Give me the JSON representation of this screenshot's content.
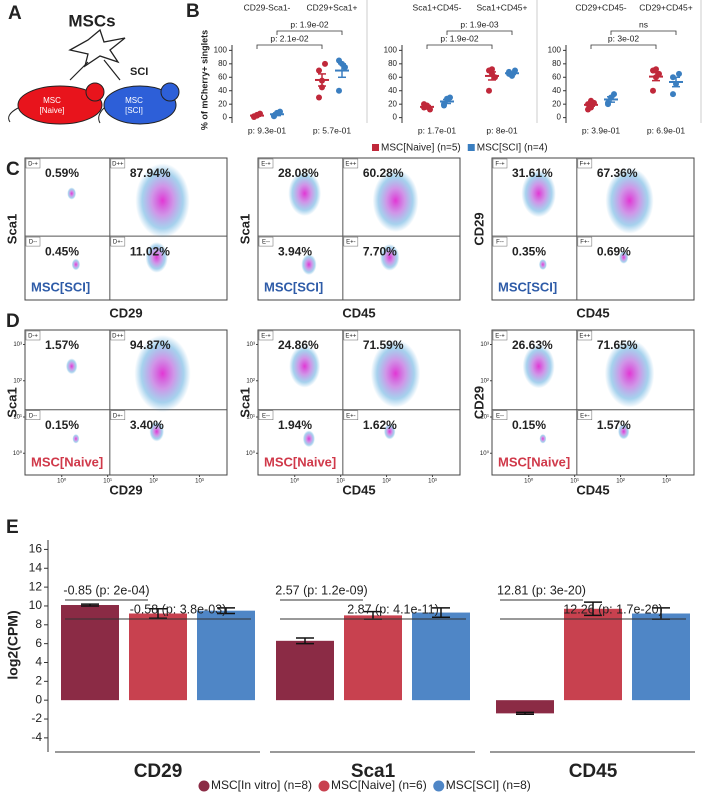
{
  "panel_labels": [
    "A",
    "B",
    "C",
    "D",
    "E"
  ],
  "diagram": {
    "title": "MSCs",
    "arrow_label": "SCI",
    "mice": [
      {
        "line1": "MSC",
        "line2": "[Naive]"
      },
      {
        "line1": "MSC",
        "line2": "[SCI]"
      }
    ]
  },
  "chart_data": [
    {
      "type": "dot",
      "ylabel": "% of mCherry+ singlets",
      "categories": [
        "CD29-Sca1-",
        "CD29+Sca1+"
      ],
      "ylim": [
        -8,
        108
      ],
      "yticks": [
        0,
        20,
        40,
        60,
        80,
        100
      ],
      "series": [
        {
          "name": "MSC[Naive] (n=5)",
          "color": "#c0283a",
          "values": [
            [
              2,
              4,
              6,
              1,
              3
            ],
            [
              70,
              55,
              80,
              30,
              45
            ]
          ],
          "mean": [
            3,
            56
          ],
          "sem": [
            1,
            9
          ]
        },
        {
          "name": "MSC[SCI] (n=4)",
          "color": "#3a7ec0",
          "values": [
            [
              3,
              7,
              9,
              2
            ],
            [
              85,
              80,
              75,
              40
            ]
          ],
          "mean": [
            5,
            70
          ],
          "sem": [
            2,
            10
          ]
        }
      ],
      "brackets": [
        "p: 1.9e-02",
        "p: 2.1e-02"
      ],
      "bottom_labels": [
        "p: 9.3e-01",
        "p: 5.7e-01"
      ]
    },
    {
      "type": "dot",
      "categories": [
        "Sca1+CD45-",
        "Sca1+CD45+"
      ],
      "ylim": [
        -8,
        108
      ],
      "yticks": [
        0,
        20,
        40,
        60,
        80,
        100
      ],
      "series": [
        {
          "color": "#c0283a",
          "values": [
            [
              15,
              18,
              12,
              20,
              16
            ],
            [
              70,
              65,
              60,
              40,
              72
            ]
          ],
          "mean": [
            16,
            62
          ],
          "sem": [
            2,
            6
          ]
        },
        {
          "color": "#3a7ec0",
          "values": [
            [
              20,
              28,
              30,
              18
            ],
            [
              68,
              62,
              70,
              65
            ]
          ],
          "mean": [
            24,
            66
          ],
          "sem": [
            3,
            2
          ]
        }
      ],
      "brackets": [
        "p: 1.9e-03",
        "p: 1.9e-02"
      ],
      "bottom_labels": [
        "p: 1.7e-01",
        "p: 8e-01"
      ]
    },
    {
      "type": "dot",
      "categories": [
        "CD29+CD45-",
        "CD29+CD45+"
      ],
      "ylim": [
        -8,
        108
      ],
      "yticks": [
        0,
        20,
        40,
        60,
        80,
        100
      ],
      "series": [
        {
          "color": "#c0283a",
          "values": [
            [
              20,
              15,
              22,
              12,
              25
            ],
            [
              70,
              60,
              65,
              40,
              72
            ]
          ],
          "mean": [
            19,
            61
          ],
          "sem": [
            2,
            6
          ]
        },
        {
          "color": "#3a7ec0",
          "values": [
            [
              22,
              30,
              35,
              20
            ],
            [
              60,
              50,
              65,
              35
            ]
          ],
          "mean": [
            27,
            53
          ],
          "sem": [
            4,
            7
          ]
        }
      ],
      "brackets": [
        "ns",
        "p: 3e-02"
      ],
      "bottom_labels": [
        "p: 3.9e-01",
        "p: 6.9e-01"
      ]
    },
    {
      "type": "flow",
      "xlabel": "CD29",
      "ylabel": "Sca1",
      "tag": "MSC[SCI]",
      "tag_color": "#2f5ca8",
      "gates": [
        "D-+",
        "D++",
        "D--",
        "D+-"
      ],
      "values": [
        0.59,
        87.94,
        0.45,
        11.02
      ],
      "value_labels": [
        "0.59%",
        "87.94%",
        "0.45%",
        "11.02%"
      ]
    },
    {
      "type": "flow",
      "xlabel": "CD45",
      "ylabel": "Sca1",
      "tag": "MSC[SCI]",
      "tag_color": "#2f5ca8",
      "gates": [
        "E-+",
        "E++",
        "E--",
        "E+-"
      ],
      "values": [
        28.08,
        60.28,
        3.94,
        7.7
      ],
      "value_labels": [
        "28.08%",
        "60.28%",
        "3.94%",
        "7.70%"
      ]
    },
    {
      "type": "flow",
      "xlabel": "CD45",
      "ylabel": "CD29",
      "tag": "MSC[SCI]",
      "tag_color": "#2f5ca8",
      "gates": [
        "F-+",
        "F++",
        "F--",
        "F+-"
      ],
      "values": [
        31.61,
        67.36,
        0.35,
        0.69
      ],
      "value_labels": [
        "31.61%",
        "67.36%",
        "0.35%",
        "0.69%"
      ]
    },
    {
      "type": "flow",
      "xlabel": "CD29",
      "ylabel": "Sca1",
      "tag": "MSC[Naive]",
      "tag_color": "#d0394a",
      "gates": [
        "D-+",
        "D++",
        "D--",
        "D+-"
      ],
      "values": [
        1.57,
        94.87,
        0.15,
        3.4
      ],
      "value_labels": [
        "1.57%",
        "94.87%",
        "0.15%",
        "3.40%"
      ],
      "xlim": [
        -0.8,
        3.6
      ],
      "ylim": [
        -0.6,
        3.4
      ],
      "xticks": [
        {
          "value": 0,
          "label": "10⁰"
        },
        {
          "value": 1,
          "label": "10¹"
        },
        {
          "value": 2,
          "label": "10²"
        },
        {
          "value": 3,
          "label": "10³"
        }
      ],
      "yticks": [
        {
          "value": 0,
          "label": "10⁰"
        },
        {
          "value": 1,
          "label": "10¹"
        },
        {
          "value": 2,
          "label": "10²"
        },
        {
          "value": 3,
          "label": "10³"
        }
      ]
    },
    {
      "type": "flow",
      "xlabel": "CD45",
      "ylabel": "Sca1",
      "tag": "MSC[Naive]",
      "tag_color": "#d0394a",
      "gates": [
        "E-+",
        "E++",
        "E--",
        "E+-"
      ],
      "values": [
        24.86,
        71.59,
        1.94,
        1.62
      ],
      "value_labels": [
        "24.86%",
        "71.59%",
        "1.94%",
        "1.62%"
      ],
      "xlim": [
        -0.8,
        3.6
      ],
      "ylim": [
        -0.6,
        3.4
      ],
      "xticks": [
        {
          "value": 0,
          "label": "10⁰"
        },
        {
          "value": 1,
          "label": "10¹"
        },
        {
          "value": 2,
          "label": "10²"
        },
        {
          "value": 3,
          "label": "10³"
        }
      ],
      "yticks": [
        {
          "value": 0,
          "label": "10⁰"
        },
        {
          "value": 1,
          "label": "10¹"
        },
        {
          "value": 2,
          "label": "10²"
        },
        {
          "value": 3,
          "label": "10³"
        }
      ]
    },
    {
      "type": "flow",
      "xlabel": "CD45",
      "ylabel": "CD29",
      "tag": "MSC[Naive]",
      "tag_color": "#d0394a",
      "gates": [
        "E-+",
        "E++",
        "E--",
        "E+-"
      ],
      "values": [
        26.63,
        71.65,
        0.15,
        1.57
      ],
      "value_labels": [
        "26.63%",
        "71.65%",
        "0.15%",
        "1.57%"
      ],
      "xlim": [
        -0.8,
        3.6
      ],
      "ylim": [
        -0.6,
        3.4
      ],
      "xticks": [
        {
          "value": 0,
          "label": "10⁰"
        },
        {
          "value": 1,
          "label": "10¹"
        },
        {
          "value": 2,
          "label": "10²"
        },
        {
          "value": 3,
          "label": "10³"
        }
      ],
      "yticks": [
        {
          "value": 0,
          "label": "10⁰"
        },
        {
          "value": 1,
          "label": "10¹"
        },
        {
          "value": 2,
          "label": "10²"
        },
        {
          "value": 3,
          "label": "10³"
        }
      ]
    },
    {
      "type": "bar",
      "ylabel": "log2(CPM)",
      "categories": [
        "CD29",
        "Sca1",
        "CD45"
      ],
      "ylim": [
        -5.5,
        17
      ],
      "yticks": [
        -4,
        -2,
        0,
        2,
        4,
        6,
        8,
        10,
        12,
        14,
        16
      ],
      "series": [
        {
          "name": "MSC[In vitro] (n=8)",
          "color": "#8b2b45",
          "values": [
            10.1,
            6.3,
            -1.4
          ],
          "sem": [
            0.1,
            0.3,
            0.1
          ]
        },
        {
          "name": "MSC[Naive] (n=6)",
          "color": "#c8414f",
          "values": [
            9.2,
            9.0,
            9.7
          ],
          "sem": [
            0.5,
            0.4,
            0.7
          ]
        },
        {
          "name": "MSC[SCI] (n=8)",
          "color": "#4f86c6",
          "values": [
            9.5,
            9.3,
            9.2
          ],
          "sem": [
            0.3,
            0.5,
            0.6
          ]
        }
      ],
      "annotations": [
        [
          "-0.85 (p: 2e-04)",
          "-0.58 (p: 3.8e-03)"
        ],
        [
          "2.57 (p: 1.2e-09)",
          "2.87 (p: 4.1e-11)"
        ],
        [
          "12.81 (p: 3e-20)",
          "12.26 (p: 1.7e-20)"
        ]
      ]
    }
  ]
}
